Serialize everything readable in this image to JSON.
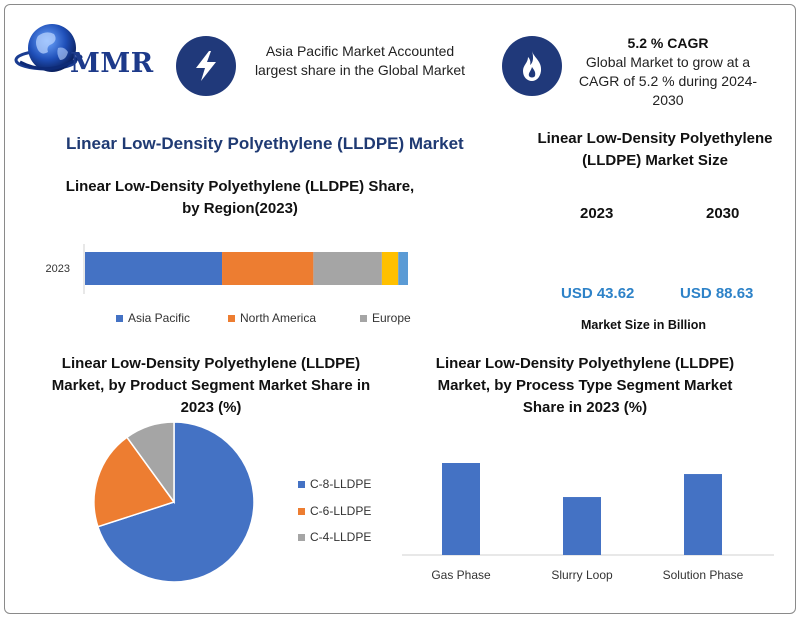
{
  "logo": {
    "text": "MMR"
  },
  "banner": {
    "left_text": "Asia Pacific Market Accounted largest share in the Global Market",
    "cagr_title": "5.2 % CAGR",
    "cagr_text": "Global Market to grow at a CAGR of 5.2 % during 2024-2030",
    "left_icon": "lightning-bolt-icon",
    "right_icon": "flame-icon"
  },
  "main_title": "Linear Low-Density Polyethylene (LLDPE) Market",
  "market_size": {
    "title": "Linear Low-Density Polyethylene (LLDPE) Market Size",
    "years": [
      "2023",
      "2030"
    ],
    "values": [
      "USD 43.62",
      "USD 88.63"
    ],
    "unit": "Market Size in Billion"
  },
  "colors": {
    "asia_pacific": "#4472c4",
    "north_america": "#ed7d31",
    "europe": "#a5a5a5",
    "mea": "#ffc000",
    "south_america": "#5b9bd5",
    "c8": "#4472c4",
    "c6": "#ed7d31",
    "c4": "#a5a5a5",
    "bar": "#4472c4",
    "title_blue": "#1f3a73",
    "usd_blue": "#2d82c8"
  },
  "chart_data": [
    {
      "type": "bar",
      "orientation": "horizontal-stacked",
      "title": "Linear Low-Density Polyethylene (LLDPE) Share, by Region(2023)",
      "categories": [
        "2023"
      ],
      "series": [
        {
          "name": "Asia Pacific",
          "values": [
            42
          ]
        },
        {
          "name": "North America",
          "values": [
            28
          ]
        },
        {
          "name": "Europe",
          "values": [
            21
          ]
        },
        {
          "values": [
            5
          ]
        },
        {
          "values": [
            3
          ]
        }
      ],
      "legend": "bottom",
      "grid": false
    },
    {
      "type": "pie",
      "title": "Linear Low-Density Polyethylene (LLDPE) Market, by Product Segment Market Share in 2023 (%)",
      "labels": [
        "C-8-LLDPE",
        "C-6-LLDPE",
        "C-4-LLDPE"
      ],
      "values": [
        70,
        20,
        10
      ],
      "legend": "right"
    },
    {
      "type": "bar",
      "title": "Linear Low-Density Polyethylene (LLDPE) Market, by Process Type Segment Market Share in 2023 (%)",
      "categories": [
        "Gas Phase",
        "Slurry Loop",
        "Solution Phase"
      ],
      "values": [
        100,
        63,
        88
      ],
      "ylim": [
        0,
        100
      ],
      "grid": false
    }
  ]
}
